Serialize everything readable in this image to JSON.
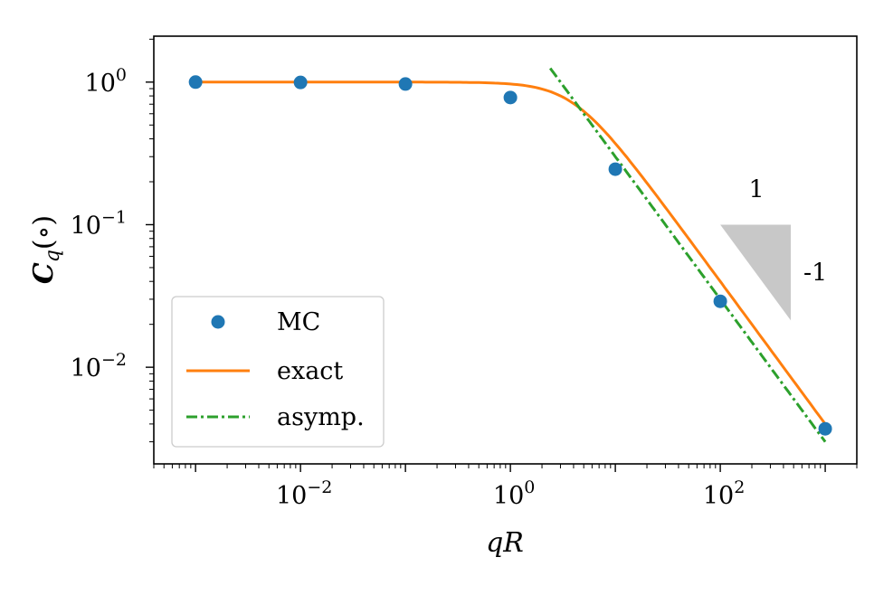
{
  "chart_data": {
    "type": "scatter",
    "title": "",
    "xlabel": "qR",
    "ylabel": "C_q(∘)",
    "xscale": "log",
    "yscale": "log",
    "xlim": [
      0.0004,
      2000
    ],
    "ylim": [
      0.0021,
      2.1
    ],
    "x_ticks": [
      {
        "value": 0.01,
        "base": "10",
        "exp": "−2"
      },
      {
        "value": 1,
        "base": "10",
        "exp": "0"
      },
      {
        "value": 100,
        "base": "10",
        "exp": "2"
      }
    ],
    "y_ticks": [
      {
        "value": 1,
        "base": "10",
        "exp": "0"
      },
      {
        "value": 0.1,
        "base": "10",
        "exp": "−1"
      },
      {
        "value": 0.01,
        "base": "10",
        "exp": "−2"
      }
    ],
    "series": [
      {
        "name": "MC",
        "kind": "scatter",
        "color": "#1f77b4",
        "x": [
          0.001,
          0.01,
          0.1,
          1,
          10,
          100,
          1000
        ],
        "y": [
          1.0,
          0.995,
          0.97,
          0.78,
          0.245,
          0.029,
          0.0037
        ]
      },
      {
        "name": "exact",
        "kind": "line",
        "color": "#ff7f0e",
        "formula": "1/(1+(qR/4)^2)^(1/2)",
        "x_range": [
          0.001,
          1000
        ]
      },
      {
        "name": "asymp.",
        "kind": "line",
        "dash": "dashdot",
        "color": "#2ca02c",
        "formula": "3/qR",
        "x_range": [
          2.4,
          1000
        ]
      }
    ],
    "legend": {
      "position": "lower-left",
      "entries": [
        "MC",
        "exact",
        "asymp."
      ]
    },
    "annotations": {
      "slope_triangle": {
        "color": "#c8c8c8",
        "x_from": 100,
        "x_to": 470,
        "y_top": 0.1,
        "y_bottom": 0.0213
      },
      "run_label": "1",
      "rise_label": "-1"
    }
  }
}
